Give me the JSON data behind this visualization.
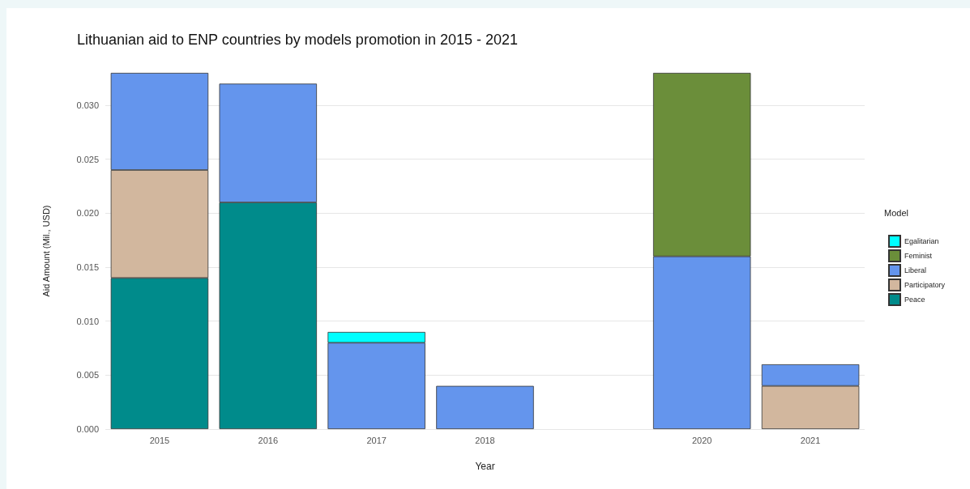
{
  "chart_data": {
    "type": "bar",
    "title": "Lithuanian aid to ENP countries by models promotion in 2015 - 2021",
    "xlabel": "Year",
    "ylabel": "Aid Amount (Mil., USD)",
    "legend_title": "Model",
    "categories": [
      "2015",
      "2016",
      "2017",
      "2018",
      null,
      "2020",
      "2021"
    ],
    "stacked": true,
    "series": [
      {
        "name": "Peace",
        "color": "#008b8b",
        "values": [
          0.014,
          0.021,
          null,
          null,
          null,
          null,
          null
        ]
      },
      {
        "name": "Participatory",
        "color": "#d2b79e",
        "values": [
          0.01,
          null,
          null,
          null,
          null,
          null,
          0.004
        ]
      },
      {
        "name": "Liberal",
        "color": "#6495ed",
        "values": [
          0.009,
          0.011,
          0.008,
          0.004,
          null,
          0.016,
          0.002
        ]
      },
      {
        "name": "Feminist",
        "color": "#6b8e3a",
        "values": [
          null,
          null,
          null,
          null,
          null,
          0.017,
          null
        ]
      },
      {
        "name": "Egalitarian",
        "color": "#00ffff",
        "values": [
          null,
          null,
          0.001,
          null,
          null,
          null,
          null
        ]
      }
    ],
    "ylim": [
      0,
      0.033
    ],
    "yticks": [
      {
        "value": 0,
        "label": "0.000"
      },
      0.005,
      {
        "value": 0.01,
        "label": "0.010"
      },
      0.015,
      {
        "value": 0.02,
        "label": "0.020"
      },
      0.025,
      {
        "value": 0.03,
        "label": "0.030"
      }
    ],
    "grid": "y",
    "legend": "right"
  }
}
